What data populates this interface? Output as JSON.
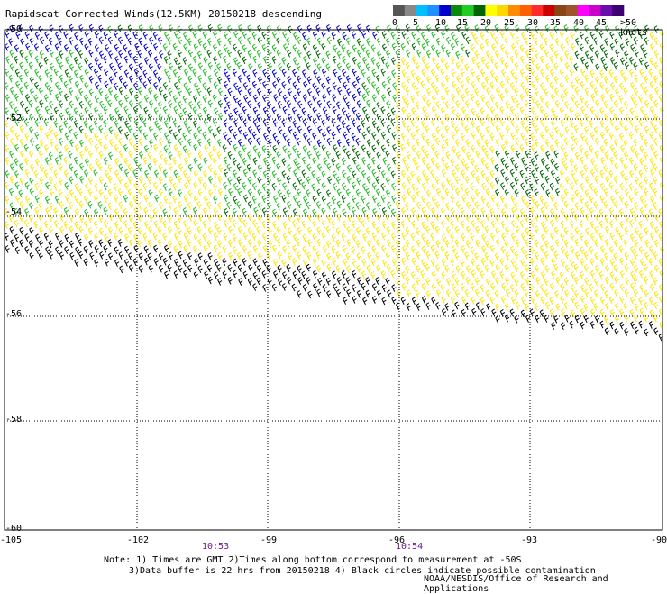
{
  "title": "Rapidscat Corrected Winds(12.5KM) 20150218 descending",
  "legend": {
    "unit_label": ">50 knots",
    "ticks": [
      "0",
      "5",
      "10",
      "15",
      "20",
      "25",
      "30",
      "35",
      "40",
      "45"
    ],
    "colors": [
      "#555555",
      "#888888",
      "#00bfff",
      "#1e90ff",
      "#0000cd",
      "#0a8a0a",
      "#22cc22",
      "#006400",
      "#ffff00",
      "#ffd700",
      "#ff8c00",
      "#ff6000",
      "#ff2a2a",
      "#cc0000",
      "#8b4513",
      "#a0522d",
      "#ff00ff",
      "#cc00cc",
      "#6a0dad",
      "#3d0070"
    ]
  },
  "axes": {
    "lat_labels": [
      "-50",
      "-52",
      "-54",
      "-56",
      "-58",
      "-60"
    ],
    "lon_labels": [
      "-105",
      "-102",
      "-99",
      "-96",
      "-93",
      "-90"
    ]
  },
  "times": [
    "10:53",
    "10:54"
  ],
  "notes": [
    "Note: 1) Times are GMT 2)Times along bottom correspond to measurement at -50S",
    "3)Data buffer is 22 hrs from 20150218 4) Black circles indicate possible contamination"
  ],
  "credit": "NOAA/NESDIS/Office of Research and Applications",
  "wind_colors": {
    "blue": "#0000cc",
    "green": "#22bb22",
    "dark_green": "#006600",
    "yellow": "#ffe600",
    "orange": "#e07020",
    "red": "#cc2020",
    "black": "#000000"
  }
}
